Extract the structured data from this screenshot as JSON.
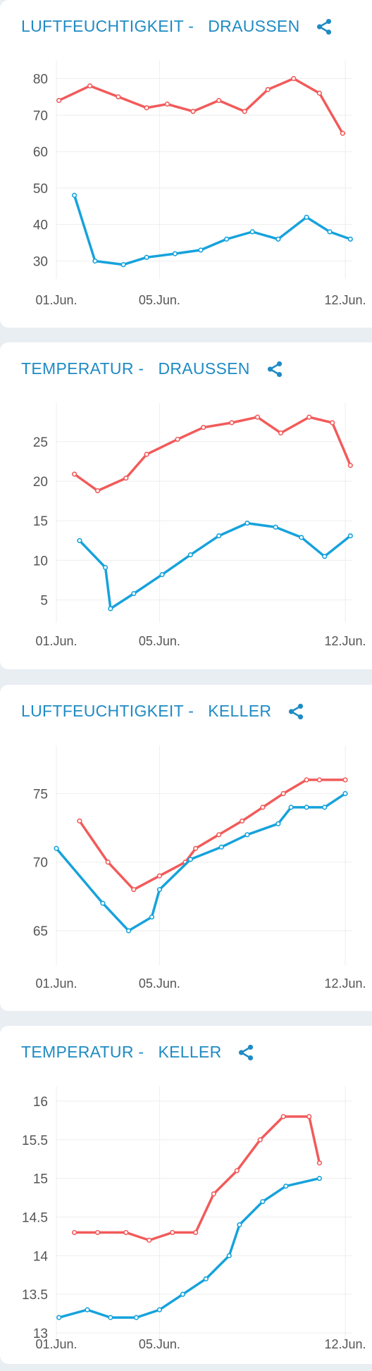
{
  "colors": {
    "title": "#1f8bc4",
    "series_red": "#f25a5a",
    "series_blue": "#16a2dc",
    "grid": "#eeeeee",
    "tick": "#555555"
  },
  "icons": {
    "share": "share-icon"
  },
  "chart_data": [
    {
      "type": "line",
      "title": "LUFTFEUCHTIGKEIT -   DRAUSSEN",
      "xlabel": "",
      "ylabel": "",
      "x_ticks": [
        "01.Jun.",
        "05.Jun.",
        "12.Jun."
      ],
      "y_ticks": [
        "30",
        "40",
        "50",
        "60",
        "70",
        "80"
      ],
      "ylim": [
        27,
        83
      ],
      "xlim": [
        1,
        12.2
      ],
      "grid": true,
      "series": [
        {
          "color": "#f25a5a",
          "points": [
            [
              1.1,
              74
            ],
            [
              2.3,
              78
            ],
            [
              3.4,
              75
            ],
            [
              4.5,
              72
            ],
            [
              5.3,
              73
            ],
            [
              6.3,
              71
            ],
            [
              7.3,
              74
            ],
            [
              8.3,
              71
            ],
            [
              9.2,
              77
            ],
            [
              10.2,
              80
            ],
            [
              11.2,
              76
            ],
            [
              12.1,
              65
            ]
          ]
        },
        {
          "color": "#16a2dc",
          "points": [
            [
              1.7,
              48
            ],
            [
              2.5,
              30
            ],
            [
              3.6,
              29
            ],
            [
              4.5,
              31
            ],
            [
              5.6,
              32
            ],
            [
              6.6,
              33
            ],
            [
              7.6,
              36
            ],
            [
              8.6,
              38
            ],
            [
              9.6,
              36
            ],
            [
              10.7,
              42
            ],
            [
              11.6,
              38
            ],
            [
              12.4,
              36
            ]
          ]
        }
      ]
    },
    {
      "type": "line",
      "title": "TEMPERATUR -   DRAUSSEN",
      "xlabel": "",
      "ylabel": "",
      "x_ticks": [
        "01.Jun.",
        "05.Jun.",
        "12.Jun."
      ],
      "y_ticks": [
        "5",
        "10",
        "15",
        "20",
        "25"
      ],
      "ylim": [
        3,
        29
      ],
      "xlim": [
        1,
        12.2
      ],
      "grid": true,
      "series": [
        {
          "color": "#f25a5a",
          "points": [
            [
              1.7,
              20.9
            ],
            [
              2.6,
              18.8
            ],
            [
              3.7,
              20.4
            ],
            [
              4.5,
              23.4
            ],
            [
              5.7,
              25.3
            ],
            [
              6.7,
              26.8
            ],
            [
              7.8,
              27.4
            ],
            [
              8.8,
              28.1
            ],
            [
              9.7,
              26.1
            ],
            [
              10.8,
              28.1
            ],
            [
              11.7,
              27.4
            ],
            [
              12.4,
              22
            ]
          ]
        },
        {
          "color": "#16a2dc",
          "points": [
            [
              1.9,
              12.5
            ],
            [
              2.9,
              9.1
            ],
            [
              3.1,
              3.9
            ],
            [
              4.0,
              5.8
            ],
            [
              5.1,
              8.2
            ],
            [
              6.2,
              10.7
            ],
            [
              7.3,
              13.1
            ],
            [
              8.4,
              14.7
            ],
            [
              9.5,
              14.2
            ],
            [
              10.5,
              12.9
            ],
            [
              11.4,
              10.5
            ],
            [
              12.4,
              13.1
            ]
          ]
        }
      ]
    },
    {
      "type": "line",
      "title": "LUFTFEUCHTIGKEIT -   KELLER",
      "xlabel": "",
      "ylabel": "",
      "x_ticks": [
        "01.Jun.",
        "05.Jun.",
        "12.Jun."
      ],
      "y_ticks": [
        "65",
        "70",
        "75"
      ],
      "ylim": [
        63,
        78
      ],
      "xlim": [
        1,
        12.2
      ],
      "grid": true,
      "series": [
        {
          "color": "#f25a5a",
          "points": [
            [
              1.9,
              73
            ],
            [
              3.0,
              70
            ],
            [
              4.0,
              68
            ],
            [
              5.0,
              69
            ],
            [
              6.0,
              70
            ],
            [
              6.4,
              71
            ],
            [
              7.3,
              72
            ],
            [
              8.2,
              73
            ],
            [
              9.0,
              74
            ],
            [
              9.8,
              75
            ],
            [
              10.7,
              76
            ],
            [
              11.2,
              76
            ],
            [
              12.2,
              76
            ]
          ]
        },
        {
          "color": "#16a2dc",
          "points": [
            [
              1.0,
              71
            ],
            [
              2.8,
              67
            ],
            [
              3.8,
              65
            ],
            [
              4.7,
              66
            ],
            [
              5.0,
              68
            ],
            [
              6.2,
              70.2
            ],
            [
              7.4,
              71.1
            ],
            [
              8.4,
              72
            ],
            [
              9.6,
              72.8
            ],
            [
              10.1,
              74
            ],
            [
              10.7,
              74
            ],
            [
              11.4,
              74
            ],
            [
              12.2,
              75
            ]
          ]
        }
      ]
    },
    {
      "type": "line",
      "title": "TEMPERATUR -   KELLER",
      "xlabel": "",
      "ylabel": "",
      "x_ticks": [
        "01.Jun.",
        "05.Jun.",
        "12.Jun."
      ],
      "y_ticks": [
        "13",
        "13.5",
        "14",
        "14.5",
        "15",
        "15.5",
        "16"
      ],
      "ylim": [
        13,
        16.1
      ],
      "xlim": [
        1,
        12.2
      ],
      "grid": true,
      "series": [
        {
          "color": "#f25a5a",
          "points": [
            [
              1.7,
              14.3
            ],
            [
              2.6,
              14.3
            ],
            [
              3.7,
              14.3
            ],
            [
              4.6,
              14.2
            ],
            [
              5.5,
              14.3
            ],
            [
              6.4,
              14.3
            ],
            [
              7.1,
              14.8
            ],
            [
              8.0,
              15.1
            ],
            [
              8.9,
              15.5
            ],
            [
              9.8,
              15.8
            ],
            [
              10.8,
              15.8
            ],
            [
              11.2,
              15.2
            ]
          ]
        },
        {
          "color": "#16a2dc",
          "points": [
            [
              1.1,
              13.2
            ],
            [
              2.2,
              13.3
            ],
            [
              3.1,
              13.2
            ],
            [
              4.1,
              13.2
            ],
            [
              5.0,
              13.3
            ],
            [
              5.9,
              13.5
            ],
            [
              6.8,
              13.7
            ],
            [
              7.7,
              14.0
            ],
            [
              8.1,
              14.4
            ],
            [
              9.0,
              14.7
            ],
            [
              9.9,
              14.9
            ],
            [
              11.2,
              15
            ]
          ]
        }
      ]
    }
  ]
}
